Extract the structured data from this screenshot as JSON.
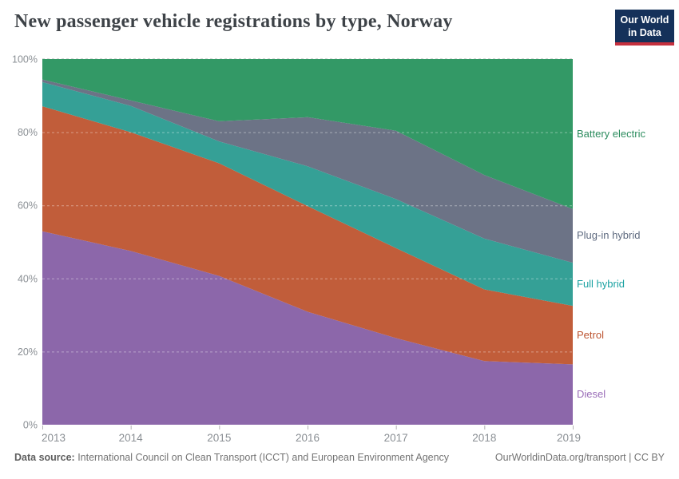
{
  "header": {
    "title": "New passenger vehicle registrations by type, Norway",
    "logo": {
      "line1": "Our World",
      "line2": "in Data"
    }
  },
  "chart_data": {
    "type": "area",
    "stacked": true,
    "unit": "%",
    "title": "New passenger vehicle registrations by type, Norway",
    "x": [
      2013,
      2014,
      2015,
      2016,
      2017,
      2018,
      2019
    ],
    "x_labels": [
      "2013",
      "2014",
      "2015",
      "2016",
      "2017",
      "2018",
      "2019"
    ],
    "y_ticks": [
      0,
      20,
      40,
      60,
      80,
      100
    ],
    "y_tick_labels": [
      "0%",
      "20%",
      "40%",
      "60%",
      "80%",
      "100%"
    ],
    "ylim": [
      0,
      100
    ],
    "grid": "dashed-horizontal",
    "legend_position": "right",
    "series": [
      {
        "name": "Diesel",
        "color": "#8c67aa",
        "label_color": "#9a6db8",
        "values": [
          52.9,
          47.5,
          40.7,
          30.9,
          23.7,
          17.4,
          16.5
        ]
      },
      {
        "name": "Petrol",
        "color": "#c15d3a",
        "label_color": "#bc5430",
        "values": [
          34.2,
          32.5,
          30.8,
          28.9,
          24.6,
          19.6,
          16.0
        ]
      },
      {
        "name": "Full hybrid",
        "color": "#35a096",
        "label_color": "#1da3a3",
        "values": [
          6.6,
          7.2,
          6.0,
          10.9,
          13.4,
          13.9,
          11.8
        ]
      },
      {
        "name": "Plug-in hybrid",
        "color": "#6c7386",
        "label_color": "#5f6b80",
        "values": [
          0.7,
          1.5,
          5.5,
          13.4,
          18.7,
          17.4,
          14.7
        ]
      },
      {
        "name": "Battery electric",
        "color": "#339966",
        "label_color": "#2d8d5f",
        "values": [
          5.6,
          11.3,
          17.0,
          15.9,
          19.6,
          31.7,
          41.0
        ]
      }
    ],
    "axis_color": "#8a8f94",
    "tick_color": "#b3b3b3",
    "gridline_top_color": "#d4d4d4",
    "gridline_overlay_color": "rgba(255,255,255,0.4)"
  },
  "footer": {
    "source_label": "Data source:",
    "source_text": " International Council on Clean Transport (ICCT) and European Environment Agency",
    "right_text": "OurWorldinData.org/transport | CC BY"
  }
}
